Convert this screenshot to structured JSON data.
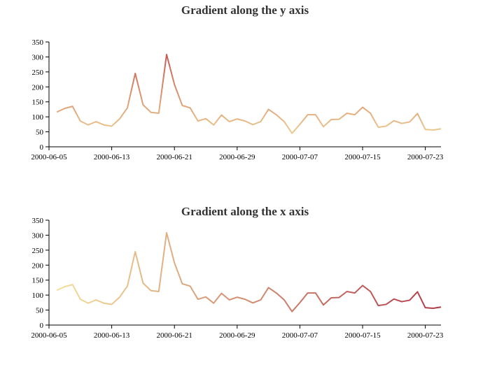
{
  "chart_data": [
    {
      "type": "line",
      "title": "Gradient along the y axis",
      "gradient": "y",
      "color_low": "#f3de9a",
      "color_high": "#c14a4a",
      "x_ticks": [
        "2000-06-05",
        "2000-06-13",
        "2000-06-21",
        "2000-06-29",
        "2000-07-07",
        "2000-07-15",
        "2000-07-23"
      ],
      "y_ticks": [
        0,
        50,
        100,
        150,
        200,
        250,
        300,
        350
      ],
      "ylim": [
        0,
        350
      ],
      "xlim": [
        "2000-06-05",
        "2000-07-25"
      ],
      "grid": false,
      "x": [
        "2000-06-06",
        "2000-06-07",
        "2000-06-08",
        "2000-06-09",
        "2000-06-10",
        "2000-06-11",
        "2000-06-12",
        "2000-06-13",
        "2000-06-14",
        "2000-06-15",
        "2000-06-16",
        "2000-06-17",
        "2000-06-18",
        "2000-06-19",
        "2000-06-20",
        "2000-06-21",
        "2000-06-22",
        "2000-06-23",
        "2000-06-24",
        "2000-06-25",
        "2000-06-26",
        "2000-06-27",
        "2000-06-28",
        "2000-06-29",
        "2000-06-30",
        "2000-07-01",
        "2000-07-02",
        "2000-07-03",
        "2000-07-04",
        "2000-07-05",
        "2000-07-06",
        "2000-07-07",
        "2000-07-08",
        "2000-07-09",
        "2000-07-10",
        "2000-07-11",
        "2000-07-12",
        "2000-07-13",
        "2000-07-14",
        "2000-07-15",
        "2000-07-16",
        "2000-07-17",
        "2000-07-18",
        "2000-07-19",
        "2000-07-20",
        "2000-07-21",
        "2000-07-22",
        "2000-07-23",
        "2000-07-24",
        "2000-07-25"
      ],
      "values": [
        116,
        128,
        135,
        86,
        73,
        84,
        73,
        69,
        93,
        130,
        245,
        140,
        115,
        112,
        308,
        208,
        138,
        130,
        86,
        94,
        73,
        106,
        84,
        93,
        86,
        74,
        84,
        125,
        107,
        84,
        45,
        75,
        107,
        107,
        67,
        91,
        92,
        112,
        107,
        132,
        112,
        65,
        69,
        87,
        78,
        83,
        111,
        58,
        56,
        60
      ]
    },
    {
      "type": "line",
      "title": "Gradient along the x axis",
      "gradient": "x",
      "color_low": "#f3de9a",
      "color_high": "#b23a48",
      "x_ticks": [
        "2000-06-05",
        "2000-06-13",
        "2000-06-21",
        "2000-06-29",
        "2000-07-07",
        "2000-07-15",
        "2000-07-23"
      ],
      "y_ticks": [
        0,
        50,
        100,
        150,
        200,
        250,
        300,
        350
      ],
      "ylim": [
        0,
        350
      ],
      "xlim": [
        "2000-06-05",
        "2000-07-25"
      ],
      "grid": false,
      "x": [
        "2000-06-06",
        "2000-06-07",
        "2000-06-08",
        "2000-06-09",
        "2000-06-10",
        "2000-06-11",
        "2000-06-12",
        "2000-06-13",
        "2000-06-14",
        "2000-06-15",
        "2000-06-16",
        "2000-06-17",
        "2000-06-18",
        "2000-06-19",
        "2000-06-20",
        "2000-06-21",
        "2000-06-22",
        "2000-06-23",
        "2000-06-24",
        "2000-06-25",
        "2000-06-26",
        "2000-06-27",
        "2000-06-28",
        "2000-06-29",
        "2000-06-30",
        "2000-07-01",
        "2000-07-02",
        "2000-07-03",
        "2000-07-04",
        "2000-07-05",
        "2000-07-06",
        "2000-07-07",
        "2000-07-08",
        "2000-07-09",
        "2000-07-10",
        "2000-07-11",
        "2000-07-12",
        "2000-07-13",
        "2000-07-14",
        "2000-07-15",
        "2000-07-16",
        "2000-07-17",
        "2000-07-18",
        "2000-07-19",
        "2000-07-20",
        "2000-07-21",
        "2000-07-22",
        "2000-07-23",
        "2000-07-24",
        "2000-07-25"
      ],
      "values": [
        116,
        128,
        135,
        86,
        73,
        84,
        73,
        69,
        93,
        130,
        245,
        140,
        115,
        112,
        308,
        208,
        138,
        130,
        86,
        94,
        73,
        106,
        84,
        93,
        86,
        74,
        84,
        125,
        107,
        84,
        45,
        75,
        107,
        107,
        67,
        91,
        92,
        112,
        107,
        132,
        112,
        65,
        69,
        87,
        78,
        83,
        111,
        58,
        56,
        60
      ]
    }
  ]
}
